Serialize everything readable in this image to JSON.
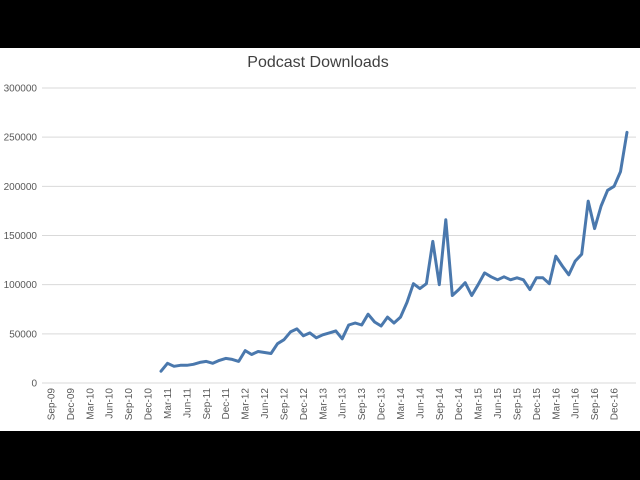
{
  "chart_data": {
    "type": "line",
    "title": "Podcast Downloads",
    "xlabel": "",
    "ylabel": "",
    "ylim": [
      0,
      300000
    ],
    "y_ticks": [
      "0",
      "50000",
      "100000",
      "150000",
      "200000",
      "250000",
      "300000"
    ],
    "x_tick_labels": [
      "Sep-09",
      "Dec-09",
      "Mar-10",
      "Jun-10",
      "Sep-10",
      "Dec-10",
      "Mar-11",
      "Jun-11",
      "Sep-11",
      "Dec-11",
      "Mar-12",
      "Jun-12",
      "Sep-12",
      "Dec-12",
      "Mar-13",
      "Jun-13",
      "Sep-13",
      "Dec-13",
      "Mar-14",
      "Jun-14",
      "Sep-14",
      "Dec-14",
      "Mar-15",
      "Jun-15",
      "Sep-15",
      "Dec-15",
      "Mar-16",
      "Jun-16",
      "Sep-16",
      "Dec-16"
    ],
    "grid": true,
    "legend": "none",
    "series_color": "#4a78ad",
    "series": [
      {
        "values": [
          null,
          null,
          null,
          null,
          null,
          null,
          null,
          null,
          null,
          null,
          null,
          null,
          null,
          null,
          null,
          null,
          null,
          12000,
          20000,
          17000,
          18000,
          18000,
          19000,
          21000,
          22000,
          20000,
          23000,
          25000,
          24000,
          22000,
          33000,
          29000,
          32000,
          31000,
          30000,
          40000,
          44000,
          52000,
          55000,
          48000,
          51000,
          46000,
          49000,
          51000,
          53000,
          45000,
          59000,
          61000,
          59000,
          70000,
          62000,
          58000,
          67000,
          61000,
          67000,
          82000,
          101000,
          96000,
          101000,
          144000,
          100000,
          166000,
          89000,
          95000,
          102000,
          89000,
          100000,
          112000,
          108000,
          105000,
          108000,
          105000,
          107000,
          105000,
          95000,
          107000,
          107000,
          101000,
          129000,
          119000,
          110000,
          124000,
          131000,
          185000,
          157000,
          180000,
          196000,
          200000,
          215000,
          255000
        ]
      }
    ]
  }
}
